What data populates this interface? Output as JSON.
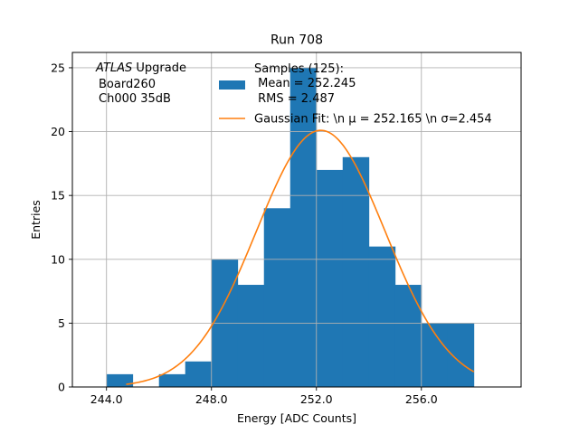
{
  "chart_data": {
    "type": "bar",
    "title": "Run 708",
    "xlabel": "Energy [ADC Counts]",
    "ylabel": "Entries",
    "xlim": [
      242.7,
      259.8
    ],
    "ylim": [
      0,
      26.2
    ],
    "xticks": [
      244.0,
      248.0,
      252.0,
      256.0
    ],
    "xtick_labels": [
      "244.0",
      "248.0",
      "252.0",
      "256.0"
    ],
    "yticks": [
      0,
      5,
      10,
      15,
      20,
      25
    ],
    "ytick_labels": [
      "0",
      "5",
      "10",
      "15",
      "20",
      "25"
    ],
    "grid": true,
    "annotation": {
      "italic": "ATLAS",
      "rest": " Upgrade",
      "line2": "Board260",
      "line3": "Ch000 35dB"
    },
    "histogram": {
      "name": "Samples (125):",
      "color": "#1f77b4",
      "bin_edges": [
        244,
        245,
        246,
        247,
        248,
        249,
        250,
        251,
        252,
        253,
        254,
        255,
        256,
        257,
        258
      ],
      "counts": [
        1,
        0,
        1,
        2,
        10,
        8,
        14,
        25,
        17,
        18,
        11,
        8,
        5,
        5
      ]
    },
    "fit": {
      "name": "Gaussian Fit",
      "color": "#ff7f0e",
      "mu": 252.165,
      "sigma": 2.454,
      "amplitude": 20.1,
      "x_range": [
        244.75,
        258
      ]
    },
    "legend": {
      "placement": "top-center",
      "hist_line1": "Samples (125):",
      "hist_line2": " Mean = 252.245",
      "hist_line3": " RMS = 2.487",
      "fit_label": "Gaussian Fit: \\n μ = 252.165 \\n σ=2.454"
    }
  }
}
